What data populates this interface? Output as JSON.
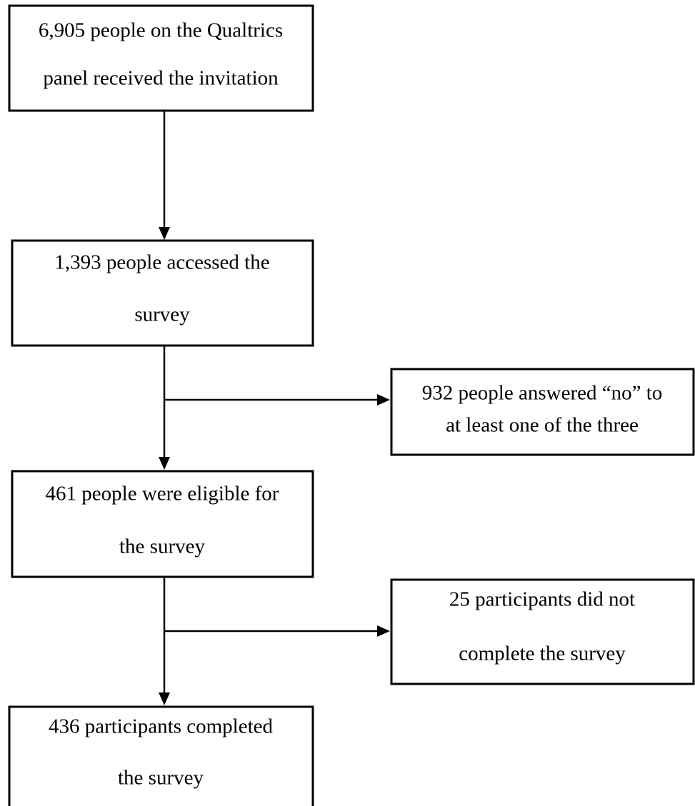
{
  "nodes": [
    {
      "lines": [
        "6,905 people on the Qualtrics",
        "panel received the invitation"
      ]
    },
    {
      "lines": [
        "1,393 people accessed the",
        "survey"
      ]
    },
    {
      "lines": [
        "932 people answered “no” to",
        "at least one of the three"
      ]
    },
    {
      "lines": [
        "461 people were eligible for",
        "the survey"
      ]
    },
    {
      "lines": [
        "25 participants did not",
        "complete the survey"
      ]
    },
    {
      "lines": [
        "436 participants completed",
        "the survey"
      ]
    }
  ]
}
